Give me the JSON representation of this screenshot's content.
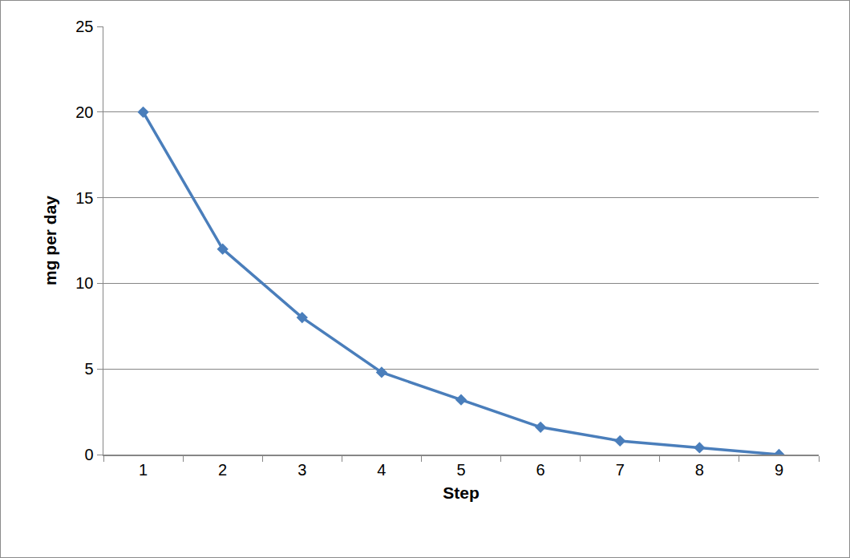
{
  "chart_data": {
    "type": "line",
    "x_label": "Step",
    "y_label": "mg per day",
    "categories": [
      "1",
      "2",
      "3",
      "4",
      "5",
      "6",
      "7",
      "8",
      "9"
    ],
    "values": [
      20,
      12,
      8,
      4.8,
      3.2,
      1.6,
      0.8,
      0.4,
      0
    ],
    "color": "#4a7ebb",
    "marker": "diamond",
    "line_style": "solid",
    "ylim": [
      0,
      25
    ],
    "yticks": [
      0,
      5,
      10,
      15,
      20,
      25
    ],
    "grid": true
  }
}
